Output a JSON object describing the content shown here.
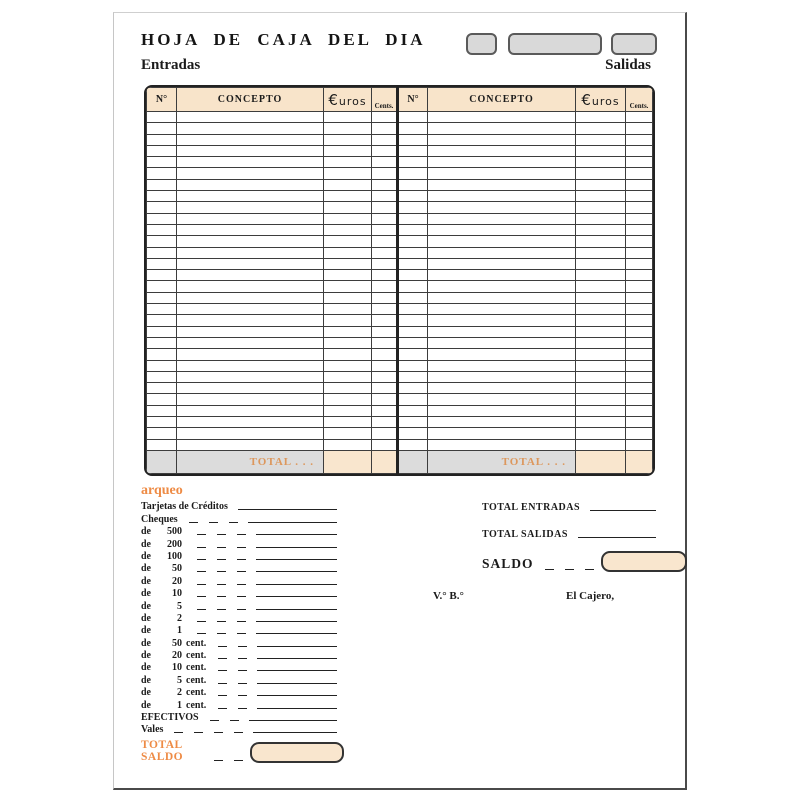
{
  "page": {
    "title": "HOJA DE CAJA DEL DIA",
    "entradas": "Entradas",
    "salidas": "Salidas"
  },
  "table": {
    "col_no": "N°",
    "col_concepto": "CONCEPTO",
    "euro_sign": "€",
    "euro_word": "uros",
    "col_cents": "Cents.",
    "body_rows": 30,
    "total_label": "TOTAL . . ."
  },
  "arqueo": {
    "title": "arqueo",
    "lines": [
      {
        "label": "Tarjetas de Créditos",
        "dashes": 0
      },
      {
        "label": "Cheques",
        "dashes": 3
      },
      {
        "prefix": "de",
        "value": "500",
        "dashes": 3
      },
      {
        "prefix": "de",
        "value": "200",
        "dashes": 3
      },
      {
        "prefix": "de",
        "value": "100",
        "dashes": 3
      },
      {
        "prefix": "de",
        "value": "50",
        "dashes": 3
      },
      {
        "prefix": "de",
        "value": "20",
        "dashes": 3
      },
      {
        "prefix": "de",
        "value": "10",
        "dashes": 3
      },
      {
        "prefix": "de",
        "value": "5",
        "dashes": 3
      },
      {
        "prefix": "de",
        "value": "2",
        "dashes": 3
      },
      {
        "prefix": "de",
        "value": "1",
        "dashes": 3
      },
      {
        "prefix": "de",
        "value": "50",
        "suffix": "cent.",
        "dashes": 2
      },
      {
        "prefix": "de",
        "value": "20",
        "suffix": "cent.",
        "dashes": 2
      },
      {
        "prefix": "de",
        "value": "10",
        "suffix": "cent.",
        "dashes": 2
      },
      {
        "prefix": "de",
        "value": "5",
        "suffix": "cent.",
        "dashes": 2
      },
      {
        "prefix": "de",
        "value": "2",
        "suffix": "cent.",
        "dashes": 2
      },
      {
        "prefix": "de",
        "value": "1",
        "suffix": "cent.",
        "dashes": 2
      },
      {
        "label": "EFECTIVOS",
        "dashes": 2
      },
      {
        "label": "Vales",
        "dashes": 4
      }
    ],
    "total_label": "TOTAL SALDO"
  },
  "summary": {
    "total_entradas": "TOTAL ENTRADAS",
    "total_salidas": "TOTAL SALIDAS",
    "saldo": "SALDO",
    "vobo": "V.° B.°",
    "cajero": "El Cajero,"
  },
  "colors": {
    "header_peach": "#f8e4ca",
    "cell_peach": "#f9e6ce",
    "box_gray": "#d9d9d9",
    "total_row_gray": "#dcdcdc",
    "accent_orange": "#ee8b45",
    "total_text_orange": "#dd975c",
    "border_dark": "#222222"
  }
}
